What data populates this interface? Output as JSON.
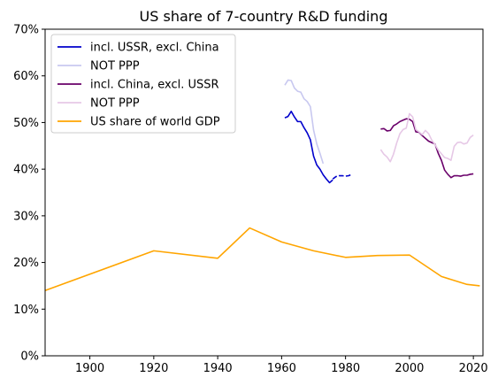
{
  "chart_data": {
    "type": "line",
    "title": "US share of 7-country R&D funding",
    "xlabel": "",
    "ylabel": "",
    "xlim": [
      1886,
      2023
    ],
    "ylim": [
      0,
      70
    ],
    "xticks": [
      1900,
      1920,
      1940,
      1960,
      1980,
      2000,
      2020
    ],
    "yticks": [
      0,
      10,
      20,
      30,
      40,
      50,
      60,
      70
    ],
    "ytick_labels": [
      "0%",
      "10%",
      "20%",
      "30%",
      "40%",
      "50%",
      "60%",
      "70%"
    ],
    "grid": false,
    "legend_position": "upper-left",
    "series": [
      {
        "name": "incl. USSR, excl. China",
        "color": "#0000cc",
        "dash": "solid",
        "x": [
          1961,
          1962,
          1963,
          1964,
          1965,
          1966,
          1967,
          1968,
          1969,
          1970,
          1971,
          1972,
          1973,
          1974,
          1975,
          1976
        ],
        "y": [
          51.0,
          51.3,
          52.4,
          51.2,
          50.2,
          50.2,
          48.9,
          47.8,
          46.3,
          42.8,
          40.9,
          40.0,
          38.8,
          37.9,
          37.1,
          37.7
        ]
      },
      {
        "name": "",
        "color": "#0000cc",
        "dash": "dashed",
        "x": [
          1976,
          1977,
          1978,
          1979,
          1980,
          1981,
          1982
        ],
        "y": [
          37.9,
          38.4,
          38.6,
          38.6,
          38.5,
          38.6,
          38.9
        ]
      },
      {
        "name": "NOT PPP",
        "color": "#c8c8f0",
        "dash": "solid",
        "x": [
          1961,
          1962,
          1963,
          1964,
          1965,
          1966,
          1967,
          1968,
          1969,
          1970,
          1971,
          1972,
          1973
        ],
        "y": [
          58.0,
          59.1,
          59.0,
          57.4,
          56.7,
          56.5,
          55.1,
          54.5,
          53.4,
          48.4,
          45.4,
          43.4,
          41.2
        ]
      },
      {
        "name": "incl. China, excl. USSR",
        "color": "#6a006a",
        "dash": "solid",
        "x": [
          1991,
          1992,
          1993,
          1994,
          1995,
          1996,
          1997,
          1998,
          1999,
          2000,
          2001,
          2002,
          2003,
          2004,
          2005,
          2006,
          2007,
          2008,
          2009,
          2010,
          2011,
          2012,
          2013,
          2014,
          2015,
          2016,
          2017,
          2018,
          2019,
          2020
        ],
        "y": [
          48.6,
          48.7,
          48.2,
          48.3,
          49.3,
          49.7,
          50.2,
          50.5,
          50.8,
          50.7,
          50.2,
          48.0,
          47.9,
          47.2,
          46.6,
          46.0,
          45.7,
          45.4,
          43.4,
          41.9,
          39.8,
          38.9,
          38.2,
          38.6,
          38.6,
          38.5,
          38.7,
          38.7,
          38.9,
          39.0
        ]
      },
      {
        "name": "NOT PPP",
        "color": "#e6c8e6",
        "dash": "solid",
        "x": [
          1991,
          1992,
          1993,
          1994,
          1995,
          1996,
          1997,
          1998,
          1999,
          2000,
          2001,
          2002,
          2003,
          2004,
          2005,
          2006,
          2007,
          2008,
          2009,
          2010,
          2011,
          2012,
          2013,
          2014,
          2015,
          2016,
          2017,
          2018,
          2019,
          2020
        ],
        "y": [
          44.2,
          43.2,
          42.6,
          41.6,
          43.2,
          45.6,
          47.6,
          48.5,
          48.8,
          51.9,
          51.2,
          48.5,
          48.0,
          47.4,
          48.3,
          47.6,
          46.2,
          45.3,
          44.1,
          43.3,
          42.5,
          42.3,
          41.9,
          44.9,
          45.7,
          45.8,
          45.4,
          45.6,
          46.8,
          47.3
        ]
      },
      {
        "name": "US share of world GDP",
        "color": "#ffa500",
        "dash": "solid",
        "x": [
          1886,
          1920,
          1940,
          1950,
          1960,
          1970,
          1980,
          1990,
          2000,
          2010,
          2018,
          2022
        ],
        "y": [
          14.0,
          22.5,
          20.9,
          27.4,
          24.4,
          22.5,
          21.1,
          21.5,
          21.6,
          17.0,
          15.3,
          15.0
        ]
      }
    ],
    "legend": [
      {
        "label": "incl. USSR, excl. China",
        "color": "#0000cc"
      },
      {
        "label": "NOT PPP",
        "color": "#c8c8f0"
      },
      {
        "label": "incl. China, excl. USSR",
        "color": "#6a006a"
      },
      {
        "label": "NOT PPP",
        "color": "#e6c8e6"
      },
      {
        "label": "US share of world GDP",
        "color": "#ffa500"
      }
    ]
  }
}
